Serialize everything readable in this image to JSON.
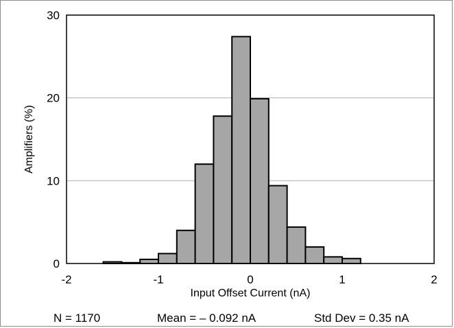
{
  "chart_data": {
    "type": "bar",
    "title": "",
    "xlabel": "Input Offset Current (nA)",
    "ylabel": "Amplifiers (%)",
    "xlim": [
      -2,
      2
    ],
    "ylim": [
      0,
      30
    ],
    "xticks": [
      "-2",
      "-1",
      "0",
      "1",
      "2"
    ],
    "yticks": [
      "0",
      "10",
      "20",
      "30"
    ],
    "grid": true,
    "bin_width": 0.2,
    "bins": [
      {
        "x0": -1.6,
        "x1": -1.4,
        "value": 0.2
      },
      {
        "x0": -1.4,
        "x1": -1.2,
        "value": 0.1
      },
      {
        "x0": -1.2,
        "x1": -1.0,
        "value": 0.5
      },
      {
        "x0": -1.0,
        "x1": -0.8,
        "value": 1.2
      },
      {
        "x0": -0.8,
        "x1": -0.6,
        "value": 4.0
      },
      {
        "x0": -0.6,
        "x1": -0.4,
        "value": 12.0
      },
      {
        "x0": -0.4,
        "x1": -0.2,
        "value": 17.8
      },
      {
        "x0": -0.2,
        "x1": 0.0,
        "value": 27.4
      },
      {
        "x0": 0.0,
        "x1": 0.2,
        "value": 19.9
      },
      {
        "x0": 0.2,
        "x1": 0.4,
        "value": 9.4
      },
      {
        "x0": 0.4,
        "x1": 0.6,
        "value": 4.4
      },
      {
        "x0": 0.6,
        "x1": 0.8,
        "value": 2.0
      },
      {
        "x0": 0.8,
        "x1": 1.0,
        "value": 0.8
      },
      {
        "x0": 1.0,
        "x1": 1.2,
        "value": 0.6
      }
    ],
    "bar_color": "#a6a6a6",
    "grid_color": "#b0b0b0"
  },
  "stats": {
    "n": "N = 1170",
    "mean": "Mean = – 0.092 nA",
    "std": "Std Dev = 0.35 nA"
  }
}
